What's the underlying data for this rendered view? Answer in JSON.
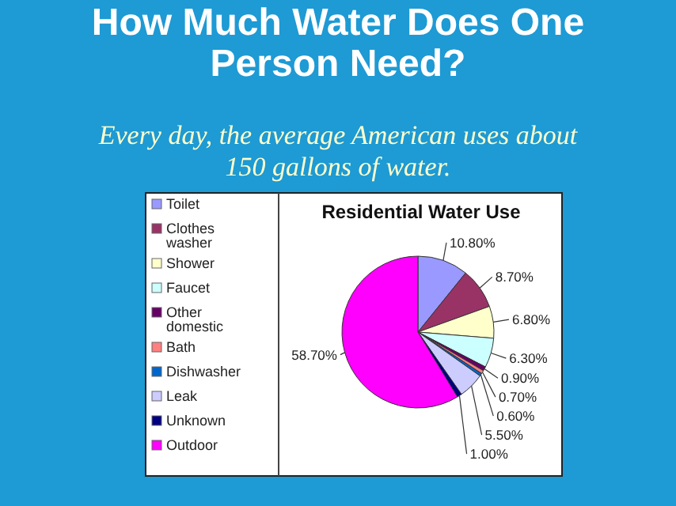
{
  "chart_data": {
    "type": "pie",
    "title": "How Much Water Does One Person Need?",
    "subtitle": "Every day, the average American uses about 150 gallons of water.",
    "annotations": [
      "Residential Water Use"
    ],
    "categories": [
      "Toilet",
      "Clothes washer",
      "Shower",
      "Faucet",
      "Other domestic",
      "Bath",
      "Dishwasher",
      "Leak",
      "Unknown",
      "Outdoor"
    ],
    "values": [
      10.8,
      8.7,
      6.8,
      6.3,
      0.9,
      0.7,
      0.6,
      5.5,
      1.0,
      58.7
    ],
    "value_labels": [
      "10.80%",
      "8.70%",
      "6.80%",
      "6.30%",
      "0.90%",
      "0.70%",
      "0.60%",
      "5.50%",
      "1.00%",
      "58.70%"
    ],
    "colors": [
      "#9999ff",
      "#993366",
      "#ffffcc",
      "#ccffff",
      "#660066",
      "#ff8080",
      "#0066cc",
      "#ccccff",
      "#000080",
      "#ff00ff"
    ],
    "legend": "left"
  }
}
